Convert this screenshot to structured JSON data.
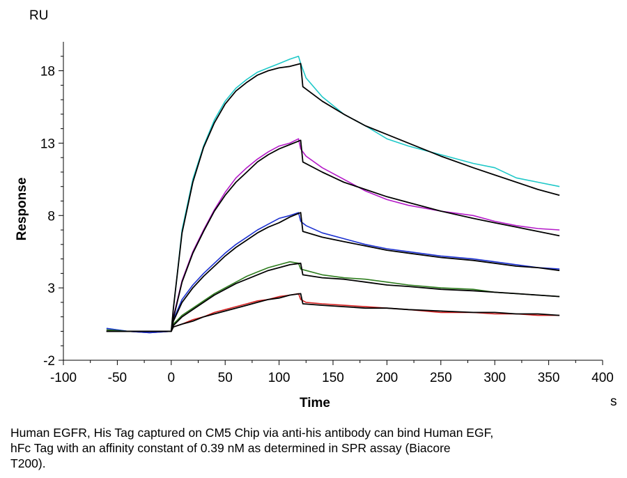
{
  "chart_data": {
    "type": "line",
    "title": "",
    "xlabel": "Time",
    "ylabel": "Response",
    "x_unit": "s",
    "y_unit": "RU",
    "xlim": [
      -100,
      400
    ],
    "ylim": [
      -2,
      20
    ],
    "x_ticks": [
      "-100",
      "-50",
      "0",
      "50",
      "100",
      "150",
      "200",
      "250",
      "300",
      "350",
      "400"
    ],
    "y_ticks": [
      "-2",
      "3",
      "8",
      "13",
      "18"
    ],
    "grid": false,
    "series": [
      {
        "color": "#1ec8c8",
        "points": [
          [
            -60,
            0.2
          ],
          [
            -40,
            0.0
          ],
          [
            -20,
            -0.1
          ],
          [
            0,
            0.0
          ],
          [
            2,
            1.5
          ],
          [
            10,
            7.0
          ],
          [
            20,
            10.5
          ],
          [
            30,
            12.8
          ],
          [
            40,
            14.6
          ],
          [
            50,
            15.9
          ],
          [
            60,
            16.8
          ],
          [
            70,
            17.4
          ],
          [
            80,
            17.9
          ],
          [
            90,
            18.2
          ],
          [
            100,
            18.5
          ],
          [
            110,
            18.8
          ],
          [
            118,
            19.0
          ],
          [
            120,
            18.5
          ],
          [
            125,
            17.5
          ],
          [
            140,
            16.2
          ],
          [
            160,
            15.0
          ],
          [
            180,
            14.2
          ],
          [
            200,
            13.3
          ],
          [
            220,
            12.8
          ],
          [
            250,
            12.2
          ],
          [
            280,
            11.6
          ],
          [
            300,
            11.3
          ],
          [
            320,
            10.6
          ],
          [
            340,
            10.3
          ],
          [
            360,
            10.0
          ]
        ]
      },
      {
        "color": "#b419c8",
        "points": [
          [
            -60,
            0.1
          ],
          [
            -40,
            0.0
          ],
          [
            -20,
            -0.1
          ],
          [
            0,
            0.0
          ],
          [
            2,
            1.0
          ],
          [
            10,
            3.5
          ],
          [
            20,
            5.5
          ],
          [
            30,
            7.0
          ],
          [
            40,
            8.4
          ],
          [
            50,
            9.6
          ],
          [
            60,
            10.6
          ],
          [
            70,
            11.3
          ],
          [
            80,
            11.9
          ],
          [
            90,
            12.4
          ],
          [
            100,
            12.8
          ],
          [
            110,
            13.0
          ],
          [
            118,
            13.3
          ],
          [
            120,
            12.6
          ],
          [
            125,
            12.1
          ],
          [
            140,
            11.3
          ],
          [
            160,
            10.5
          ],
          [
            180,
            9.7
          ],
          [
            200,
            9.1
          ],
          [
            220,
            8.7
          ],
          [
            250,
            8.3
          ],
          [
            280,
            8.0
          ],
          [
            300,
            7.6
          ],
          [
            320,
            7.3
          ],
          [
            340,
            7.1
          ],
          [
            360,
            7.0
          ]
        ]
      },
      {
        "color": "#1a2fd0",
        "points": [
          [
            -60,
            0.2
          ],
          [
            -40,
            0.0
          ],
          [
            -20,
            -0.1
          ],
          [
            0,
            0.0
          ],
          [
            2,
            0.8
          ],
          [
            10,
            2.2
          ],
          [
            20,
            3.2
          ],
          [
            30,
            4.0
          ],
          [
            40,
            4.7
          ],
          [
            50,
            5.4
          ],
          [
            60,
            6.0
          ],
          [
            70,
            6.5
          ],
          [
            80,
            7.0
          ],
          [
            90,
            7.4
          ],
          [
            100,
            7.8
          ],
          [
            110,
            8.0
          ],
          [
            118,
            8.2
          ],
          [
            120,
            7.6
          ],
          [
            125,
            7.3
          ],
          [
            140,
            6.8
          ],
          [
            160,
            6.4
          ],
          [
            180,
            6.0
          ],
          [
            200,
            5.7
          ],
          [
            220,
            5.5
          ],
          [
            250,
            5.2
          ],
          [
            280,
            5.0
          ],
          [
            300,
            4.8
          ],
          [
            320,
            4.6
          ],
          [
            340,
            4.4
          ],
          [
            360,
            4.3
          ]
        ]
      },
      {
        "color": "#2e7d1e",
        "points": [
          [
            -60,
            0.1
          ],
          [
            -40,
            0.0
          ],
          [
            -20,
            0.0
          ],
          [
            0,
            0.0
          ],
          [
            2,
            0.5
          ],
          [
            10,
            1.1
          ],
          [
            20,
            1.6
          ],
          [
            30,
            2.1
          ],
          [
            40,
            2.6
          ],
          [
            50,
            3.0
          ],
          [
            60,
            3.4
          ],
          [
            70,
            3.8
          ],
          [
            80,
            4.1
          ],
          [
            90,
            4.4
          ],
          [
            100,
            4.6
          ],
          [
            110,
            4.8
          ],
          [
            118,
            4.7
          ],
          [
            120,
            4.3
          ],
          [
            125,
            4.2
          ],
          [
            140,
            3.9
          ],
          [
            160,
            3.7
          ],
          [
            180,
            3.6
          ],
          [
            200,
            3.4
          ],
          [
            220,
            3.2
          ],
          [
            250,
            3.0
          ],
          [
            280,
            2.9
          ],
          [
            300,
            2.7
          ],
          [
            320,
            2.6
          ],
          [
            340,
            2.5
          ],
          [
            360,
            2.4
          ]
        ]
      },
      {
        "color": "#d42020",
        "points": [
          [
            -60,
            0.0
          ],
          [
            -40,
            0.0
          ],
          [
            -20,
            0.0
          ],
          [
            0,
            0.0
          ],
          [
            2,
            0.3
          ],
          [
            10,
            0.5
          ],
          [
            20,
            0.8
          ],
          [
            30,
            1.0
          ],
          [
            40,
            1.3
          ],
          [
            50,
            1.5
          ],
          [
            60,
            1.7
          ],
          [
            70,
            1.9
          ],
          [
            80,
            2.1
          ],
          [
            90,
            2.2
          ],
          [
            100,
            2.4
          ],
          [
            110,
            2.5
          ],
          [
            118,
            2.6
          ],
          [
            120,
            2.2
          ],
          [
            125,
            2.0
          ],
          [
            140,
            1.9
          ],
          [
            160,
            1.8
          ],
          [
            180,
            1.7
          ],
          [
            200,
            1.6
          ],
          [
            220,
            1.5
          ],
          [
            250,
            1.3
          ],
          [
            280,
            1.3
          ],
          [
            300,
            1.2
          ],
          [
            320,
            1.2
          ],
          [
            340,
            1.1
          ],
          [
            360,
            1.1
          ]
        ]
      },
      {
        "color": "#000000",
        "points": [
          [
            -60,
            0.0
          ],
          [
            0,
            0.0
          ],
          [
            2,
            1.6
          ],
          [
            10,
            6.8
          ],
          [
            20,
            10.3
          ],
          [
            30,
            12.7
          ],
          [
            40,
            14.4
          ],
          [
            50,
            15.7
          ],
          [
            60,
            16.6
          ],
          [
            70,
            17.2
          ],
          [
            80,
            17.7
          ],
          [
            90,
            18.0
          ],
          [
            100,
            18.2
          ],
          [
            110,
            18.3
          ],
          [
            120,
            18.5
          ],
          [
            122,
            16.9
          ],
          [
            140,
            15.9
          ],
          [
            160,
            15.0
          ],
          [
            180,
            14.2
          ],
          [
            200,
            13.6
          ],
          [
            220,
            13.0
          ],
          [
            250,
            12.1
          ],
          [
            280,
            11.3
          ],
          [
            300,
            10.8
          ],
          [
            320,
            10.3
          ],
          [
            340,
            9.8
          ],
          [
            360,
            9.4
          ]
        ]
      },
      {
        "color": "#000000",
        "points": [
          [
            -60,
            0.0
          ],
          [
            0,
            0.0
          ],
          [
            2,
            0.9
          ],
          [
            10,
            3.4
          ],
          [
            20,
            5.4
          ],
          [
            30,
            6.9
          ],
          [
            40,
            8.3
          ],
          [
            50,
            9.4
          ],
          [
            60,
            10.3
          ],
          [
            70,
            11.0
          ],
          [
            80,
            11.7
          ],
          [
            90,
            12.2
          ],
          [
            100,
            12.6
          ],
          [
            110,
            12.9
          ],
          [
            120,
            13.2
          ],
          [
            122,
            11.7
          ],
          [
            140,
            11.0
          ],
          [
            160,
            10.3
          ],
          [
            180,
            9.8
          ],
          [
            200,
            9.3
          ],
          [
            220,
            8.9
          ],
          [
            250,
            8.3
          ],
          [
            280,
            7.8
          ],
          [
            300,
            7.5
          ],
          [
            320,
            7.2
          ],
          [
            340,
            6.9
          ],
          [
            360,
            6.6
          ]
        ]
      },
      {
        "color": "#000000",
        "points": [
          [
            -60,
            0.0
          ],
          [
            0,
            0.0
          ],
          [
            2,
            0.7
          ],
          [
            10,
            2.0
          ],
          [
            20,
            3.0
          ],
          [
            30,
            3.8
          ],
          [
            40,
            4.5
          ],
          [
            50,
            5.2
          ],
          [
            60,
            5.8
          ],
          [
            70,
            6.3
          ],
          [
            80,
            6.8
          ],
          [
            90,
            7.2
          ],
          [
            100,
            7.5
          ],
          [
            110,
            7.9
          ],
          [
            120,
            8.2
          ],
          [
            122,
            6.9
          ],
          [
            140,
            6.5
          ],
          [
            160,
            6.2
          ],
          [
            180,
            5.9
          ],
          [
            200,
            5.6
          ],
          [
            220,
            5.4
          ],
          [
            250,
            5.1
          ],
          [
            280,
            4.9
          ],
          [
            300,
            4.7
          ],
          [
            320,
            4.5
          ],
          [
            340,
            4.4
          ],
          [
            360,
            4.2
          ]
        ]
      },
      {
        "color": "#000000",
        "points": [
          [
            -60,
            0.0
          ],
          [
            0,
            0.0
          ],
          [
            2,
            0.4
          ],
          [
            10,
            1.0
          ],
          [
            20,
            1.5
          ],
          [
            30,
            2.0
          ],
          [
            40,
            2.5
          ],
          [
            50,
            2.9
          ],
          [
            60,
            3.3
          ],
          [
            70,
            3.6
          ],
          [
            80,
            3.9
          ],
          [
            90,
            4.2
          ],
          [
            100,
            4.4
          ],
          [
            110,
            4.6
          ],
          [
            120,
            4.7
          ],
          [
            122,
            3.9
          ],
          [
            140,
            3.7
          ],
          [
            160,
            3.6
          ],
          [
            180,
            3.4
          ],
          [
            200,
            3.2
          ],
          [
            220,
            3.1
          ],
          [
            250,
            2.9
          ],
          [
            280,
            2.8
          ],
          [
            300,
            2.7
          ],
          [
            320,
            2.6
          ],
          [
            340,
            2.5
          ],
          [
            360,
            2.4
          ]
        ]
      },
      {
        "color": "#000000",
        "points": [
          [
            -60,
            0.0
          ],
          [
            0,
            0.0
          ],
          [
            2,
            0.3
          ],
          [
            10,
            0.5
          ],
          [
            20,
            0.7
          ],
          [
            30,
            1.0
          ],
          [
            40,
            1.2
          ],
          [
            50,
            1.4
          ],
          [
            60,
            1.6
          ],
          [
            70,
            1.8
          ],
          [
            80,
            2.0
          ],
          [
            90,
            2.2
          ],
          [
            100,
            2.3
          ],
          [
            110,
            2.5
          ],
          [
            120,
            2.6
          ],
          [
            122,
            1.9
          ],
          [
            140,
            1.8
          ],
          [
            160,
            1.7
          ],
          [
            180,
            1.6
          ],
          [
            200,
            1.6
          ],
          [
            220,
            1.5
          ],
          [
            250,
            1.4
          ],
          [
            280,
            1.3
          ],
          [
            300,
            1.3
          ],
          [
            320,
            1.2
          ],
          [
            340,
            1.2
          ],
          [
            360,
            1.1
          ]
        ]
      }
    ]
  },
  "caption": "Human EGFR, His Tag captured on CM5 Chip via anti-his antibody can bind Human EGF,\nhFc Tag with an affinity constant of 0.39 nM as determined in SPR assay (Biacore\nT200)."
}
